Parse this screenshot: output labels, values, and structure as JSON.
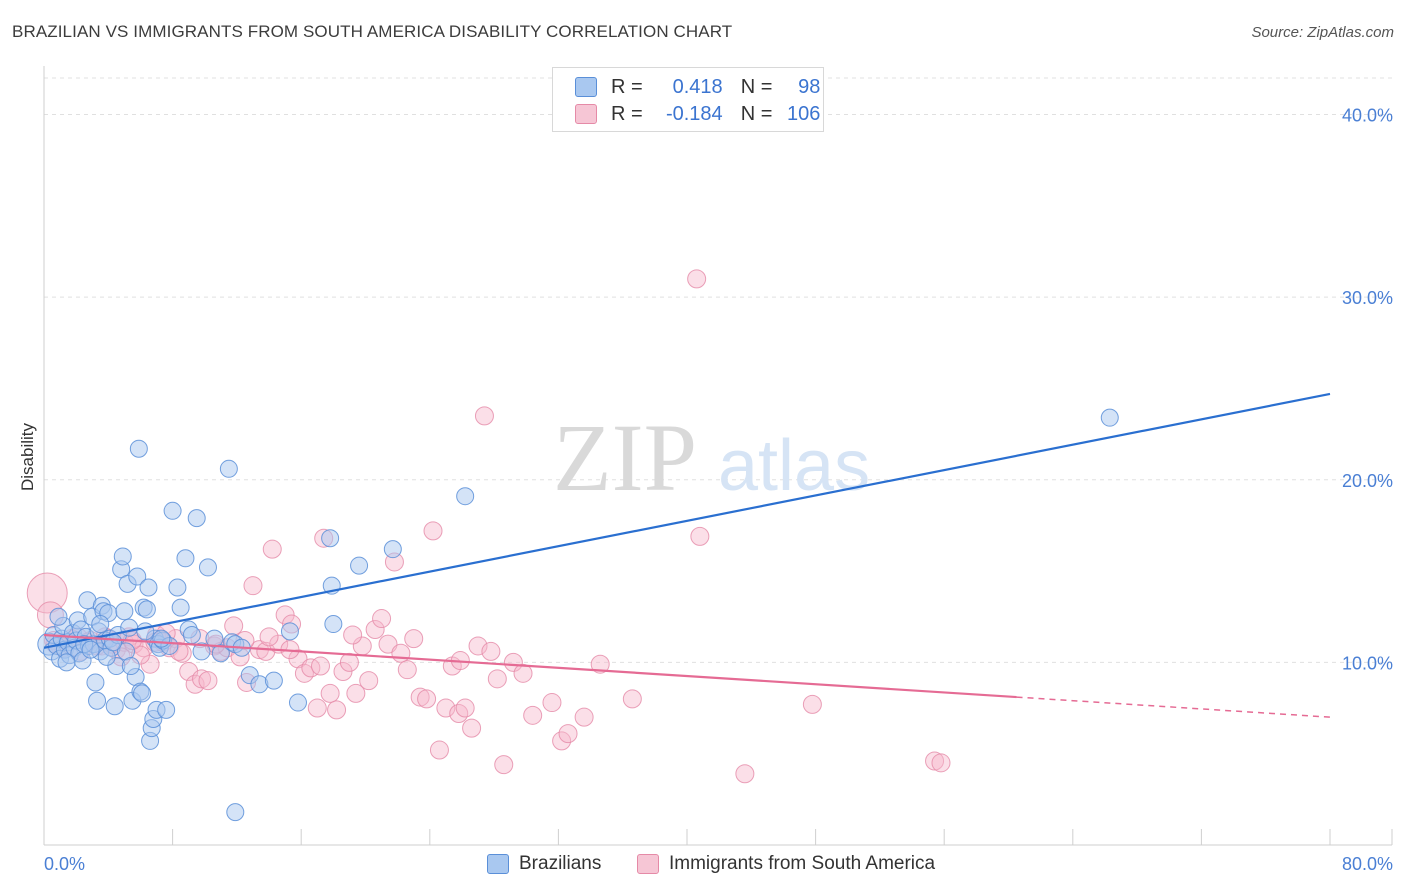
{
  "header": {
    "title": "BRAZILIAN VS IMMIGRANTS FROM SOUTH AMERICA DISABILITY CORRELATION CHART",
    "source": "Source: ZipAtlas.com"
  },
  "legend_stats": {
    "r_label": "R =",
    "n_label": "N =",
    "series1": {
      "r": "0.418",
      "n": "98"
    },
    "series2": {
      "r": "-0.184",
      "n": "106"
    }
  },
  "bottom_legend": {
    "series1": "Brazilians",
    "series2": "Immigrants from South America"
  },
  "watermark": {
    "zip": "ZIP",
    "atlas": "atlas"
  },
  "colors": {
    "blue_fill": "#a9c8f0",
    "blue_stroke": "#5a8fd8",
    "blue_line": "#2a6fd0",
    "pink_fill": "#f6b9cc",
    "pink_stroke": "#e58aa7",
    "pink_line": "#e56b94"
  },
  "chart_data": {
    "type": "scatter",
    "title": "BRAZILIAN VS IMMIGRANTS FROM SOUTH AMERICA DISABILITY CORRELATION CHART",
    "xlabel": "",
    "ylabel": "Disability",
    "xlim": [
      0,
      80
    ],
    "ylim": [
      0,
      42
    ],
    "x_tick_labels": {
      "left": "0.0%",
      "right": "80.0%"
    },
    "y_ticks": [
      10,
      20,
      30,
      40
    ],
    "y_tick_labels": [
      "10.0%",
      "20.0%",
      "30.0%",
      "40.0%"
    ],
    "grid": true,
    "series": [
      {
        "name": "Brazilians",
        "r": 0.418,
        "n": 98,
        "trend": {
          "x0": 0,
          "y0": 10.8,
          "x1": 80,
          "y1": 24.7
        },
        "points": [
          [
            0.3,
            11.0
          ],
          [
            0.5,
            10.6
          ],
          [
            0.6,
            11.5
          ],
          [
            0.8,
            10.9
          ],
          [
            1.0,
            10.2
          ],
          [
            1.1,
            11.3
          ],
          [
            1.2,
            12.0
          ],
          [
            1.3,
            10.7
          ],
          [
            1.5,
            11.1
          ],
          [
            1.6,
            10.4
          ],
          [
            1.8,
            11.6
          ],
          [
            1.9,
            10.8
          ],
          [
            2.0,
            11.2
          ],
          [
            2.1,
            12.3
          ],
          [
            2.2,
            10.5
          ],
          [
            2.3,
            11.8
          ],
          [
            2.4,
            10.1
          ],
          [
            2.6,
            11.4
          ],
          [
            2.7,
            13.4
          ],
          [
            2.8,
            10.9
          ],
          [
            3.0,
            12.5
          ],
          [
            3.1,
            11.0
          ],
          [
            3.2,
            8.9
          ],
          [
            3.3,
            7.9
          ],
          [
            3.4,
            11.7
          ],
          [
            3.5,
            10.6
          ],
          [
            3.6,
            13.1
          ],
          [
            3.7,
            12.8
          ],
          [
            3.8,
            11.2
          ],
          [
            4.0,
            12.7
          ],
          [
            4.1,
            11.3
          ],
          [
            4.2,
            10.8
          ],
          [
            4.4,
            7.6
          ],
          [
            4.5,
            9.8
          ],
          [
            4.6,
            11.5
          ],
          [
            4.8,
            15.1
          ],
          [
            4.9,
            15.8
          ],
          [
            5.0,
            12.8
          ],
          [
            5.1,
            10.6
          ],
          [
            5.2,
            14.3
          ],
          [
            5.3,
            11.9
          ],
          [
            5.5,
            7.9
          ],
          [
            5.7,
            9.2
          ],
          [
            5.8,
            14.7
          ],
          [
            5.9,
            21.7
          ],
          [
            6.0,
            8.4
          ],
          [
            6.1,
            8.3
          ],
          [
            6.2,
            13.0
          ],
          [
            6.4,
            12.9
          ],
          [
            6.5,
            14.1
          ],
          [
            6.6,
            5.7
          ],
          [
            6.7,
            6.4
          ],
          [
            6.8,
            6.9
          ],
          [
            6.9,
            11.3
          ],
          [
            7.0,
            7.4
          ],
          [
            7.1,
            11.0
          ],
          [
            7.2,
            10.8
          ],
          [
            7.4,
            11.2
          ],
          [
            7.6,
            7.4
          ],
          [
            7.8,
            10.9
          ],
          [
            8.0,
            18.3
          ],
          [
            8.3,
            14.1
          ],
          [
            8.5,
            13.0
          ],
          [
            8.8,
            15.7
          ],
          [
            9.0,
            11.8
          ],
          [
            9.2,
            11.5
          ],
          [
            9.5,
            17.9
          ],
          [
            9.8,
            10.6
          ],
          [
            10.2,
            15.2
          ],
          [
            10.6,
            11.3
          ],
          [
            11.0,
            10.5
          ],
          [
            11.5,
            20.6
          ],
          [
            11.7,
            11.1
          ],
          [
            11.9,
            11.0
          ],
          [
            12.3,
            10.8
          ],
          [
            12.8,
            9.3
          ],
          [
            13.4,
            8.8
          ],
          [
            14.3,
            9.0
          ],
          [
            15.3,
            11.7
          ],
          [
            15.8,
            7.8
          ],
          [
            17.8,
            16.8
          ],
          [
            17.9,
            14.2
          ],
          [
            18.0,
            12.1
          ],
          [
            19.6,
            15.3
          ],
          [
            21.7,
            16.2
          ],
          [
            26.2,
            19.1
          ],
          [
            66.3,
            23.4
          ],
          [
            11.9,
            1.8
          ],
          [
            2.5,
            11.0
          ],
          [
            3.9,
            10.3
          ],
          [
            0.9,
            12.5
          ],
          [
            1.4,
            10.0
          ],
          [
            6.3,
            11.7
          ],
          [
            7.3,
            11.3
          ],
          [
            5.4,
            9.8
          ],
          [
            4.3,
            11.1
          ],
          [
            3.5,
            12.1
          ],
          [
            2.9,
            10.7
          ]
        ]
      },
      {
        "name": "Immigrants from South America",
        "r": -0.184,
        "n": 106,
        "trend": {
          "x0": 0,
          "y0": 11.5,
          "x1": 60.5,
          "y1": 8.1,
          "dash_to_x": 80,
          "dash_to_y": 7.0
        },
        "points": [
          [
            0.2,
            13.8
          ],
          [
            0.4,
            12.6
          ],
          [
            0.7,
            11.0
          ],
          [
            1.2,
            10.8
          ],
          [
            2.1,
            11.4
          ],
          [
            2.9,
            11.2
          ],
          [
            3.6,
            10.9
          ],
          [
            4.0,
            11.3
          ],
          [
            4.5,
            10.7
          ],
          [
            5.0,
            11.1
          ],
          [
            5.3,
            11.4
          ],
          [
            5.6,
            11.0
          ],
          [
            6.2,
            10.8
          ],
          [
            6.6,
            9.9
          ],
          [
            7.0,
            11.5
          ],
          [
            7.4,
            11.1
          ],
          [
            7.8,
            10.8
          ],
          [
            8.2,
            11.3
          ],
          [
            8.6,
            10.5
          ],
          [
            9.0,
            9.5
          ],
          [
            9.4,
            8.8
          ],
          [
            9.8,
            9.1
          ],
          [
            10.2,
            9.0
          ],
          [
            10.6,
            10.9
          ],
          [
            11.0,
            10.6
          ],
          [
            11.4,
            10.8
          ],
          [
            11.8,
            12.0
          ],
          [
            12.2,
            10.3
          ],
          [
            12.6,
            8.9
          ],
          [
            13.0,
            14.2
          ],
          [
            13.4,
            10.7
          ],
          [
            13.8,
            10.6
          ],
          [
            14.2,
            16.2
          ],
          [
            14.6,
            11.0
          ],
          [
            15.0,
            12.6
          ],
          [
            15.4,
            12.1
          ],
          [
            15.8,
            10.2
          ],
          [
            16.2,
            9.4
          ],
          [
            16.6,
            9.7
          ],
          [
            17.0,
            7.5
          ],
          [
            17.4,
            16.8
          ],
          [
            17.8,
            8.3
          ],
          [
            18.2,
            7.4
          ],
          [
            18.6,
            9.5
          ],
          [
            19.0,
            10.0
          ],
          [
            19.4,
            8.3
          ],
          [
            19.8,
            10.9
          ],
          [
            20.2,
            9.0
          ],
          [
            20.6,
            11.8
          ],
          [
            21.0,
            12.4
          ],
          [
            21.4,
            11.0
          ],
          [
            21.8,
            15.5
          ],
          [
            22.2,
            10.5
          ],
          [
            22.6,
            9.6
          ],
          [
            23.0,
            11.3
          ],
          [
            23.4,
            8.1
          ],
          [
            23.8,
            8.0
          ],
          [
            24.2,
            17.2
          ],
          [
            24.6,
            5.2
          ],
          [
            25.0,
            7.5
          ],
          [
            25.4,
            9.8
          ],
          [
            25.8,
            7.2
          ],
          [
            26.2,
            7.5
          ],
          [
            26.6,
            6.4
          ],
          [
            27.0,
            10.9
          ],
          [
            27.4,
            23.5
          ],
          [
            27.8,
            10.6
          ],
          [
            28.2,
            9.1
          ],
          [
            28.6,
            4.4
          ],
          [
            29.2,
            10.0
          ],
          [
            29.8,
            9.4
          ],
          [
            30.4,
            7.1
          ],
          [
            31.6,
            7.8
          ],
          [
            32.2,
            5.7
          ],
          [
            32.6,
            6.1
          ],
          [
            33.6,
            7.0
          ],
          [
            34.6,
            9.9
          ],
          [
            36.6,
            8.0
          ],
          [
            40.6,
            31.0
          ],
          [
            40.8,
            16.9
          ],
          [
            43.6,
            3.9
          ],
          [
            47.8,
            7.7
          ],
          [
            55.4,
            4.6
          ],
          [
            55.8,
            4.5
          ],
          [
            19.2,
            11.5
          ],
          [
            17.2,
            9.8
          ],
          [
            15.3,
            10.7
          ],
          [
            14.0,
            11.4
          ],
          [
            12.5,
            11.2
          ],
          [
            10.7,
            11.0
          ],
          [
            9.7,
            11.3
          ],
          [
            8.4,
            10.6
          ],
          [
            7.6,
            11.6
          ],
          [
            6.9,
            11.1
          ],
          [
            6.0,
            10.4
          ],
          [
            5.5,
            11.2
          ],
          [
            4.8,
            10.3
          ],
          [
            4.2,
            11.0
          ],
          [
            3.8,
            11.4
          ],
          [
            3.3,
            10.9
          ],
          [
            2.7,
            11.1
          ],
          [
            2.3,
            10.6
          ],
          [
            1.7,
            11.3
          ],
          [
            1.0,
            10.9
          ],
          [
            0.6,
            11.2
          ],
          [
            25.9,
            10.1
          ]
        ]
      }
    ]
  }
}
